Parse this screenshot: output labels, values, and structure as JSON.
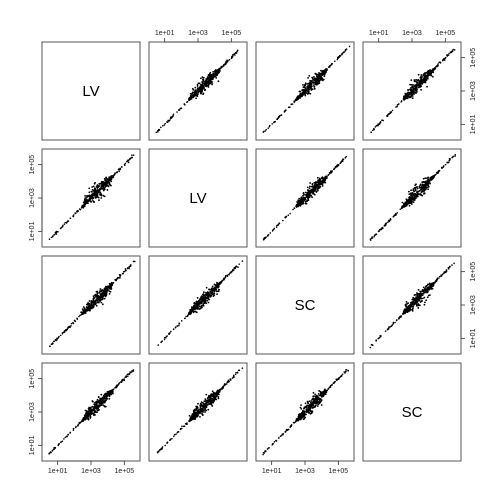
{
  "chart_data": {
    "type": "scatter",
    "layout": "pairs-matrix",
    "variables": [
      "LV",
      "LV",
      "SC",
      "SC"
    ],
    "x_scale": "log",
    "y_scale": "log",
    "xlim": [
      2,
      500000
    ],
    "ylim": [
      2,
      500000
    ],
    "ticks": [
      10,
      1000,
      100000
    ],
    "tick_labels": [
      "1e+01",
      "1e+03",
      "1e+05"
    ],
    "grid": false,
    "point_color": "#000000",
    "point_cloud": {
      "diagonal_range": [
        3,
        300000
      ],
      "dense_core_range": [
        300,
        20000
      ],
      "max_spread_decades": 0.45
    }
  }
}
